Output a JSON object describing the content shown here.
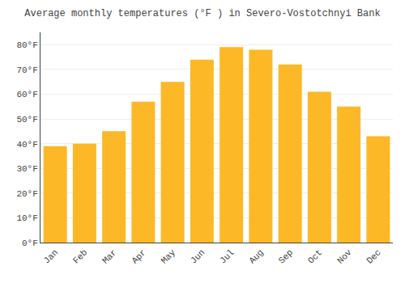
{
  "chart_data": {
    "type": "bar",
    "title": "Average monthly temperatures (°F ) in Severo-Vostotchnyi Bank",
    "categories": [
      "Jan",
      "Feb",
      "Mar",
      "Apr",
      "May",
      "Jun",
      "Jul",
      "Aug",
      "Sep",
      "Oct",
      "Nov",
      "Dec"
    ],
    "values": [
      39,
      40,
      45,
      57,
      65,
      74,
      79,
      78,
      72,
      61,
      55,
      43
    ],
    "color": "#FDB827",
    "ylim": [
      0,
      85
    ],
    "yticks": [
      {
        "value": 0,
        "label": "0°F"
      },
      {
        "value": 10,
        "label": "10°F"
      },
      {
        "value": 20,
        "label": "20°F"
      },
      {
        "value": 30,
        "label": "30°F"
      },
      {
        "value": 40,
        "label": "40°F"
      },
      {
        "value": 50,
        "label": "50°F"
      },
      {
        "value": 60,
        "label": "60°F"
      },
      {
        "value": 70,
        "label": "70°F"
      },
      {
        "value": 80,
        "label": "80°F"
      }
    ],
    "grid": true
  }
}
